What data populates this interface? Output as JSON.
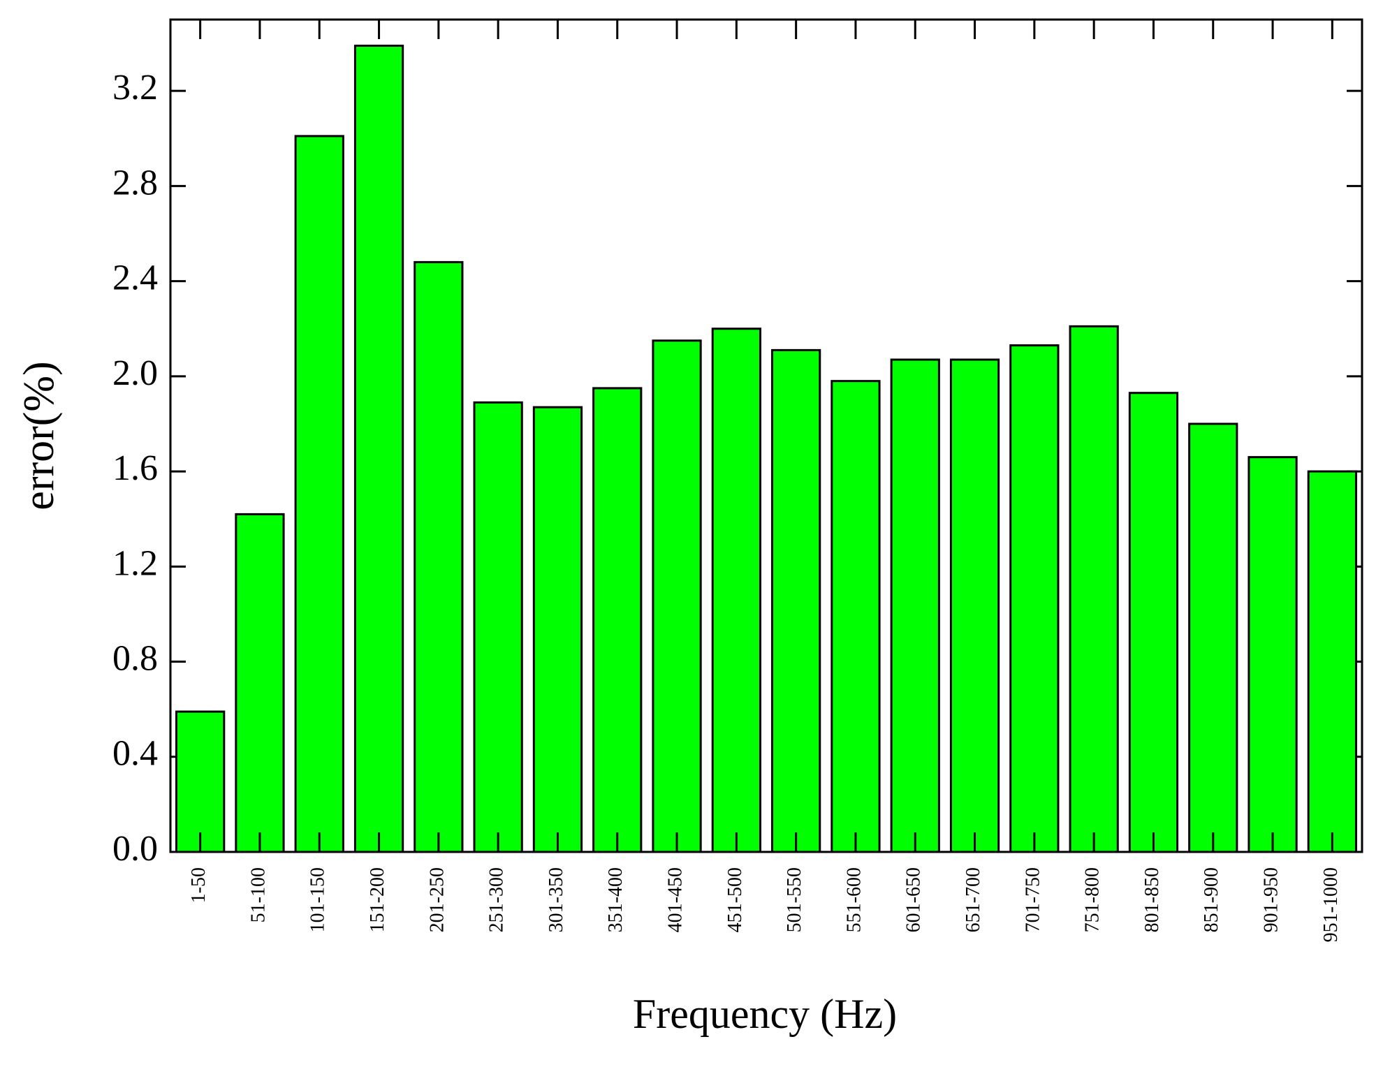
{
  "chart_data": {
    "type": "bar",
    "x_label": "Frequency (Hz)",
    "y_label": "error(%)",
    "categories": [
      "1-50",
      "51-100",
      "101-150",
      "151-200",
      "201-250",
      "251-300",
      "301-350",
      "351-400",
      "401-450",
      "451-500",
      "501-550",
      "551-600",
      "601-650",
      "651-700",
      "701-750",
      "751-800",
      "801-850",
      "851-900",
      "901-950",
      "951-1000"
    ],
    "values": [
      0.59,
      1.42,
      3.01,
      3.39,
      2.48,
      1.89,
      1.87,
      1.95,
      2.15,
      2.2,
      2.11,
      1.98,
      2.07,
      2.07,
      2.13,
      2.21,
      1.93,
      1.8,
      1.66,
      1.6
    ],
    "color": "#00ff00",
    "ylim": [
      0,
      3.5
    ],
    "yticks": [
      {
        "value": 0,
        "label": "0.0"
      },
      0.4,
      0.8,
      1.2,
      1.6,
      {
        "value": 2,
        "label": "2.0"
      },
      2.4,
      2.8,
      3.2
    ],
    "grid": false
  }
}
